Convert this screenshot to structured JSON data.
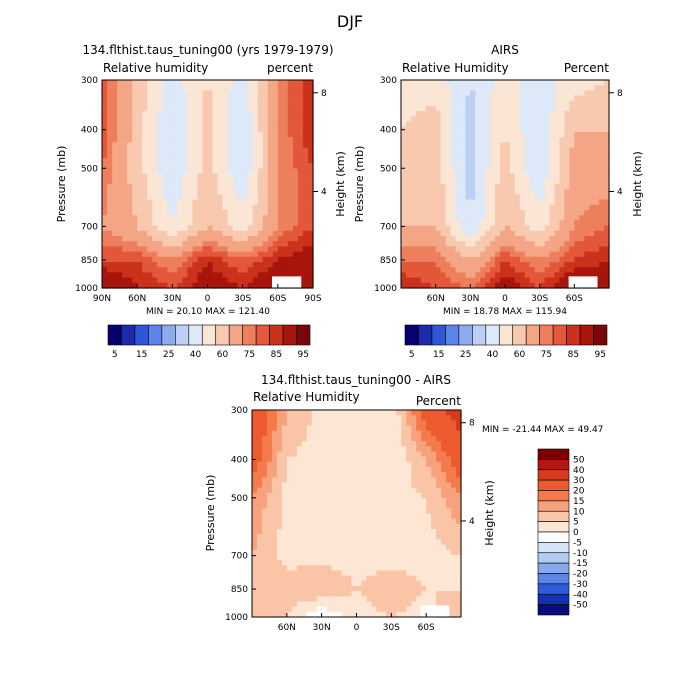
{
  "figure": {
    "title": "DJF"
  },
  "panels": [
    {
      "id": "model",
      "title": "134.flthist.taus_tuning00 (yrs 1979-1979)",
      "left_label": "Relative humidity",
      "right_label": "percent",
      "stats": "MIN =  20.10   MAX = 121.40",
      "x_labels": [
        "90N",
        "60N",
        "30N",
        "0",
        "30S",
        "60S",
        "90S"
      ],
      "x_values": [
        90,
        60,
        30,
        0,
        -30,
        -60,
        -90
      ]
    },
    {
      "id": "obs",
      "title": "AIRS",
      "left_label": "Relative Humidity",
      "right_label": "Percent",
      "stats": "MIN =  18.78   MAX = 115.94",
      "x_labels": [
        "60N",
        "30N",
        "0",
        "30S",
        "60S"
      ],
      "x_values": [
        60,
        30,
        0,
        -30,
        -60
      ]
    },
    {
      "id": "diff",
      "title": "134.flthist.taus_tuning00 - AIRS",
      "left_label": "Relative Humidity",
      "right_label": "Percent",
      "stats": "MIN = -21.44   MAX =  49.47",
      "x_labels": [
        "60N",
        "30N",
        "0",
        "30S",
        "60S"
      ],
      "x_values": [
        60,
        30,
        0,
        -30,
        -60
      ]
    }
  ],
  "axes": {
    "ylabel": "Pressure (mb)",
    "y2label": "Height (km)",
    "pressure_ticks": [
      300,
      400,
      500,
      700,
      850,
      1000
    ],
    "height_ticks": [
      8,
      4
    ]
  },
  "colorbars": {
    "absolute": {
      "labels": [
        "5",
        "15",
        "25",
        "40",
        "60",
        "75",
        "85",
        "95"
      ],
      "colors": [
        "#08006e",
        "#1c2ba6",
        "#2e57d6",
        "#5b83e8",
        "#8eabf0",
        "#bcd0f5",
        "#dde8f9",
        "#fbe6d6",
        "#f8c9ae",
        "#f4a585",
        "#ee7f5d",
        "#e3573a",
        "#cb321c",
        "#a8150c",
        "#7a0707"
      ]
    },
    "difference": {
      "labels": [
        "50",
        "40",
        "30",
        "20",
        "15",
        "10",
        "5",
        "0",
        "-5",
        "-10",
        "-15",
        "-20",
        "-30",
        "-40",
        "-50"
      ],
      "colors": [
        "#7d0000",
        "#b31712",
        "#d6391e",
        "#ec5a30",
        "#f47a4b",
        "#f7a27c",
        "#fac4a6",
        "#fde6d3",
        "#ffffff",
        "#d6e4f8",
        "#b3cdf2",
        "#86abec",
        "#5b86e6",
        "#2e5bdb",
        "#1431b3",
        "#080c7e"
      ]
    }
  },
  "chart_data": [
    {
      "type": "heatmap",
      "title": "134.flthist.taus_tuning00 (yrs 1979-1979)",
      "variable": "Relative humidity",
      "units": "percent",
      "xlabel": "",
      "ylabel": "Pressure (mb)",
      "y2label": "Height (km)",
      "x": [
        90,
        60,
        30,
        0,
        -30,
        -60,
        -90
      ],
      "y": [
        300,
        400,
        500,
        700,
        850,
        1000
      ],
      "values": [
        [
          80,
          55,
          35,
          50,
          35,
          70,
          85
        ],
        [
          80,
          55,
          30,
          55,
          30,
          70,
          85
        ],
        [
          75,
          55,
          30,
          55,
          30,
          70,
          80
        ],
        [
          70,
          60,
          40,
          60,
          45,
          70,
          80
        ],
        [
          80,
          80,
          70,
          85,
          75,
          85,
          90
        ],
        [
          95,
          85,
          80,
          90,
          85,
          95,
          95
        ]
      ],
      "min": 20.1,
      "max": 121.4,
      "ylim": [
        1000,
        300
      ],
      "xlim": [
        90,
        -90
      ]
    },
    {
      "type": "heatmap",
      "title": "AIRS",
      "variable": "Relative Humidity",
      "units": "Percent",
      "xlabel": "",
      "ylabel": "Pressure (mb)",
      "y2label": "Height (km)",
      "x": [
        90,
        60,
        30,
        0,
        -30,
        -60,
        -90
      ],
      "y": [
        300,
        400,
        500,
        700,
        850,
        1000
      ],
      "values": [
        [
          45,
          45,
          30,
          45,
          35,
          45,
          50
        ],
        [
          50,
          55,
          25,
          50,
          30,
          60,
          60
        ],
        [
          55,
          55,
          25,
          55,
          30,
          65,
          65
        ],
        [
          60,
          60,
          30,
          60,
          45,
          70,
          75
        ],
        [
          75,
          75,
          60,
          80,
          70,
          80,
          85
        ],
        [
          85,
          80,
          75,
          90,
          80,
          95,
          90
        ]
      ],
      "min": 18.78,
      "max": 115.94,
      "ylim": [
        1000,
        300
      ],
      "xlim": [
        90,
        -90
      ]
    },
    {
      "type": "heatmap",
      "title": "134.flthist.taus_tuning00 - AIRS",
      "variable": "Relative Humidity",
      "units": "Percent",
      "xlabel": "",
      "ylabel": "Pressure (mb)",
      "y2label": "Height (km)",
      "x": [
        90,
        60,
        30,
        0,
        -30,
        -60,
        -90
      ],
      "y": [
        300,
        400,
        500,
        700,
        850,
        1000
      ],
      "values": [
        [
          30,
          10,
          3,
          3,
          0,
          25,
          35
        ],
        [
          25,
          5,
          3,
          3,
          0,
          10,
          25
        ],
        [
          15,
          3,
          3,
          3,
          3,
          5,
          15
        ],
        [
          10,
          3,
          3,
          3,
          3,
          3,
          5
        ],
        [
          5,
          8,
          10,
          5,
          8,
          5,
          5
        ],
        [
          10,
          5,
          -5,
          3,
          5,
          3,
          10
        ]
      ],
      "min": -21.44,
      "max": 49.47,
      "ylim": [
        1000,
        300
      ],
      "xlim": [
        90,
        -90
      ]
    }
  ]
}
